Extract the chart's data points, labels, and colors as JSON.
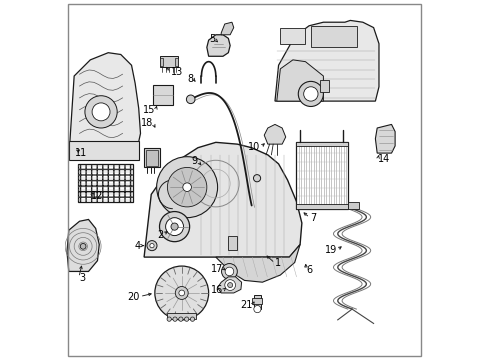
{
  "background_color": "#ffffff",
  "line_color": "#1a1a1a",
  "text_color": "#000000",
  "font_size": 7.0,
  "fig_width": 4.89,
  "fig_height": 3.6,
  "dpi": 100,
  "gray_light": "#e8e8e8",
  "gray_mid": "#cccccc",
  "gray_dark": "#999999",
  "part_labels": {
    "1": [
      0.575,
      0.285,
      0.555,
      0.315,
      "right",
      "bottom"
    ],
    "2": [
      0.295,
      0.355,
      0.315,
      0.375,
      "left",
      "center"
    ],
    "3": [
      0.058,
      0.22,
      0.075,
      0.265,
      "left",
      "center"
    ],
    "4": [
      0.218,
      0.315,
      0.245,
      0.315,
      "left",
      "center"
    ],
    "5": [
      0.415,
      0.885,
      0.43,
      0.865,
      "left",
      "center"
    ],
    "6": [
      0.68,
      0.25,
      0.665,
      0.285,
      "left",
      "center"
    ],
    "7": [
      0.68,
      0.4,
      0.67,
      0.42,
      "left",
      "center"
    ],
    "8": [
      0.37,
      0.78,
      0.37,
      0.76,
      "left",
      "center"
    ],
    "9": [
      0.38,
      0.55,
      0.39,
      0.52,
      "left",
      "center"
    ],
    "10": [
      0.56,
      0.59,
      0.575,
      0.57,
      "left",
      "center"
    ],
    "11": [
      0.035,
      0.58,
      0.048,
      0.6,
      "left",
      "center"
    ],
    "12": [
      0.09,
      0.46,
      0.105,
      0.49,
      "left",
      "center"
    ],
    "13": [
      0.305,
      0.795,
      0.285,
      0.81,
      "left",
      "center"
    ],
    "14": [
      0.88,
      0.565,
      0.87,
      0.585,
      "left",
      "center"
    ],
    "15": [
      0.265,
      0.69,
      0.26,
      0.71,
      "left",
      "center"
    ],
    "16": [
      0.445,
      0.195,
      0.43,
      0.21,
      "left",
      "center"
    ],
    "17": [
      0.445,
      0.255,
      0.435,
      0.27,
      "left",
      "center"
    ],
    "18": [
      0.265,
      0.655,
      0.275,
      0.635,
      "left",
      "center"
    ],
    "19": [
      0.77,
      0.305,
      0.775,
      0.325,
      "left",
      "center"
    ],
    "20": [
      0.225,
      0.175,
      0.245,
      0.19,
      "left",
      "center"
    ],
    "21": [
      0.54,
      0.155,
      0.535,
      0.17,
      "left",
      "center"
    ]
  }
}
